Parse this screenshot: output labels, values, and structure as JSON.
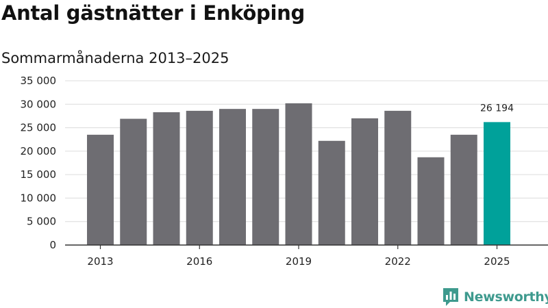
{
  "header": {
    "title": "Antal gästnätter i Enköping",
    "subtitle": "Sommarmånaderna 2013–2025"
  },
  "brand": {
    "name": "Newsworthy",
    "color": "#3e9a8e",
    "logo_icon": "bar-chart-speech-bubble-icon"
  },
  "colors": {
    "bar": "#6e6d72",
    "highlight": "#00a19a",
    "grid": "#dcdcdc",
    "axis": "#333333"
  },
  "chart_data": {
    "type": "bar",
    "title": "Antal gästnätter i Enköping",
    "subtitle": "Sommarmånaderna 2013–2025",
    "categories": [
      "2013",
      "2014",
      "2015",
      "2016",
      "2017",
      "2018",
      "2019",
      "2020",
      "2021",
      "2022",
      "2023",
      "2024",
      "2025"
    ],
    "values": [
      23500,
      26900,
      28300,
      28600,
      29000,
      29000,
      30200,
      22200,
      27000,
      28600,
      18700,
      23500,
      26194
    ],
    "highlight_index": 12,
    "annotations": [
      {
        "category": "2025",
        "text": "26 194"
      }
    ],
    "x_tick_labels": [
      "2013",
      "2016",
      "2019",
      "2022",
      "2025"
    ],
    "y_ticks": [
      0,
      5000,
      10000,
      15000,
      20000,
      25000,
      30000,
      35000
    ],
    "y_tick_labels": [
      "0",
      "5 000",
      "10 000",
      "15 000",
      "20 000",
      "25 000",
      "30 000",
      "35 000"
    ],
    "ylim": [
      0,
      35000
    ],
    "xlabel": "",
    "ylabel": "",
    "grid": true,
    "legend": "none"
  }
}
